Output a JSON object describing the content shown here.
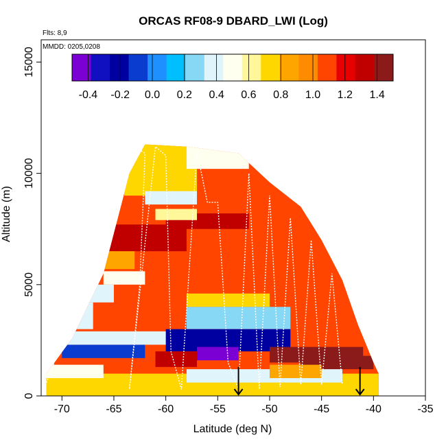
{
  "chart_data": {
    "type": "heatmap",
    "title": "ORCAS RF08-9 DBARD_LWI (Log)",
    "annotations": [
      "Flts: 8,9",
      "MMDD: 0205,0208"
    ],
    "xlabel": "Latitude (deg N)",
    "ylabel": "Altitude (m)",
    "xlim": [
      -72,
      -35
    ],
    "ylim": [
      0,
      16000
    ],
    "x_ticks": [
      -70,
      -65,
      -60,
      -55,
      -50,
      -45,
      -40,
      -35
    ],
    "y_ticks": [
      0,
      5000,
      10000,
      15000
    ],
    "colorbar": {
      "placement": "top-inside",
      "range": [
        -0.5,
        1.5
      ],
      "ticks": [
        -0.4,
        -0.2,
        0.0,
        0.2,
        0.4,
        0.6,
        0.8,
        1.0,
        1.2,
        1.4
      ],
      "tick_labels": [
        "-0.4",
        "-0.2",
        "0.0",
        "0.2",
        "0.4",
        "0.6",
        "0.8",
        "1.0",
        "1.2",
        "1.4"
      ],
      "colors": [
        "#7b00d4",
        "#1010c0",
        "#0000a0",
        "#0a3cd0",
        "#1e90ff",
        "#00bfff",
        "#87d8f5",
        "#dff4fb",
        "#fffff0",
        "#fff79a",
        "#ffd700",
        "#ffa500",
        "#ff8c00",
        "#ff4500",
        "#e60000",
        "#c00000",
        "#8b1a1a"
      ]
    },
    "coverage_outline": {
      "lat": [
        -71.5,
        -69,
        -66,
        -63.5,
        -62,
        -58,
        -53,
        -50,
        -47,
        -45,
        -43,
        -41.5,
        -40,
        -39.5,
        -39.5,
        -71.5
      ],
      "alt": [
        1000,
        2600,
        5500,
        10000,
        11300,
        11200,
        10900,
        9600,
        8500,
        7000,
        5200,
        3200,
        1500,
        1000,
        0,
        0
      ]
    },
    "regions": [
      {
        "lat": [
          -72,
          -39
        ],
        "alt": [
          0,
          12000
        ],
        "value": 1.05
      },
      {
        "lat": [
          -56,
          -40
        ],
        "alt": [
          2000,
          8000
        ],
        "value": 1.05
      },
      {
        "lat": [
          -60,
          -52
        ],
        "alt": [
          7500,
          8200
        ],
        "value": 1.35
      },
      {
        "lat": [
          -66,
          -58
        ],
        "alt": [
          6500,
          7700
        ],
        "value": 1.3
      },
      {
        "lat": [
          -64,
          -57
        ],
        "alt": [
          9000,
          11300
        ],
        "value": 0.75
      },
      {
        "lat": [
          -58,
          -52
        ],
        "alt": [
          10200,
          11200
        ],
        "value": 0.45
      },
      {
        "lat": [
          -62,
          -57
        ],
        "alt": [
          8600,
          9200
        ],
        "value": 0.4
      },
      {
        "lat": [
          -61,
          -57
        ],
        "alt": [
          7900,
          8400
        ],
        "value": 0.6
      },
      {
        "lat": [
          -67,
          -63
        ],
        "alt": [
          5700,
          6500
        ],
        "value": 0.85
      },
      {
        "lat": [
          -66,
          -62
        ],
        "alt": [
          5000,
          5600
        ],
        "value": 0.5
      },
      {
        "lat": [
          -68,
          -65
        ],
        "alt": [
          4200,
          5000
        ],
        "value": 0.35
      },
      {
        "lat": [
          -71,
          -67
        ],
        "alt": [
          3000,
          4200
        ],
        "value": 0.35
      },
      {
        "lat": [
          -58,
          -50
        ],
        "alt": [
          4000,
          4600
        ],
        "value": 0.75
      },
      {
        "lat": [
          -58,
          -48
        ],
        "alt": [
          3000,
          4000
        ],
        "value": 0.3
      },
      {
        "lat": [
          -60,
          -48
        ],
        "alt": [
          2000,
          3000
        ],
        "value": -0.15
      },
      {
        "lat": [
          -57,
          -53
        ],
        "alt": [
          1600,
          2200
        ],
        "value": -0.4
      },
      {
        "lat": [
          -70,
          -62
        ],
        "alt": [
          1700,
          2300
        ],
        "value": -0.1
      },
      {
        "lat": [
          -71,
          -60
        ],
        "alt": [
          2300,
          2900
        ],
        "value": 0.35
      },
      {
        "lat": [
          -61,
          -57
        ],
        "alt": [
          1300,
          2000
        ],
        "value": 1.3
      },
      {
        "lat": [
          -50,
          -41
        ],
        "alt": [
          1500,
          2200
        ],
        "value": 1.4
      },
      {
        "lat": [
          -47,
          -40
        ],
        "alt": [
          1200,
          1800
        ],
        "value": 1.45
      },
      {
        "lat": [
          -72,
          -39
        ],
        "alt": [
          0,
          1000
        ],
        "value": 0.7
      },
      {
        "lat": [
          -58,
          -43
        ],
        "alt": [
          600,
          1200
        ],
        "value": 0.4
      },
      {
        "lat": [
          -72,
          -66
        ],
        "alt": [
          800,
          1400
        ],
        "value": 0.45
      },
      {
        "lat": [
          -50,
          -45
        ],
        "alt": [
          800,
          1400
        ],
        "value": 0.9
      }
    ],
    "flight_track": {
      "lat": [
        -71.5,
        -64.5,
        -63.5,
        -63,
        -62,
        -62.5,
        -63.5,
        -61,
        -60,
        -59.5,
        -58.5,
        -57,
        -56,
        -55,
        -54,
        -53,
        -52,
        -51,
        -50,
        -49,
        -48,
        -47,
        -46,
        -45,
        -44,
        -43
      ],
      "alt": [
        600,
        9000,
        11300,
        11200,
        10900,
        5000,
        300,
        11200,
        10800,
        2000,
        300,
        11000,
        8700,
        8700,
        1500,
        300,
        10000,
        300,
        9000,
        400,
        8000,
        500,
        7000,
        500,
        5500,
        500
      ]
    },
    "arrows": [
      {
        "lat": -53,
        "label": ""
      },
      {
        "lat": -41.3,
        "label": ""
      }
    ]
  }
}
